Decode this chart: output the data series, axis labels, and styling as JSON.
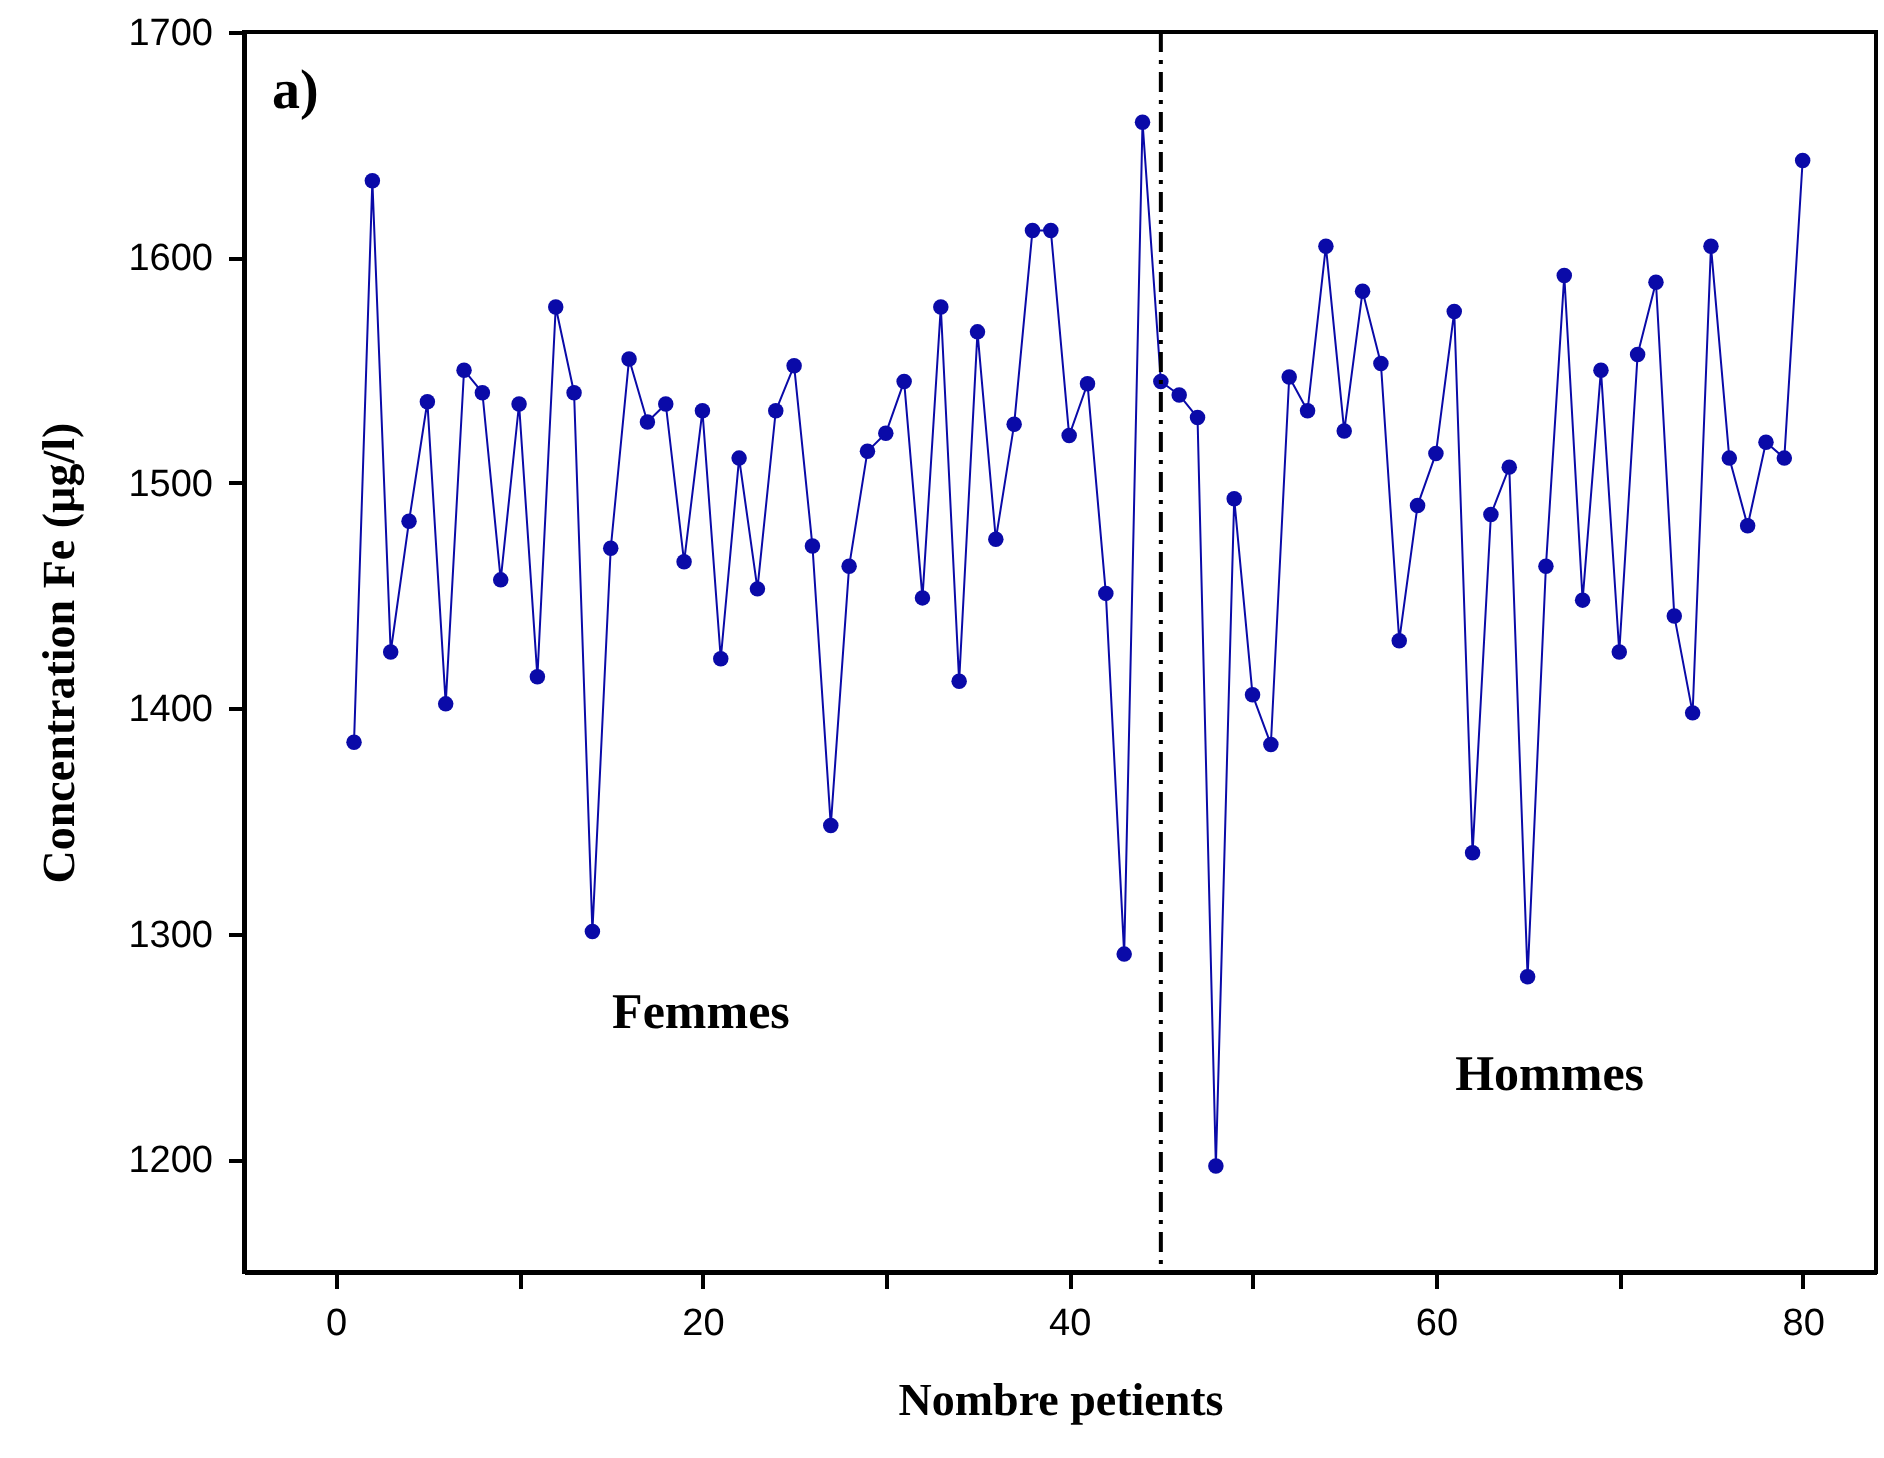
{
  "chart_data": {
    "type": "line",
    "xlabel": "Nombre petients",
    "ylabel": "Concentration Fe (µg/l)",
    "annotations": [
      "a)",
      "Femmes",
      "Hommes"
    ],
    "x": [
      1,
      2,
      3,
      4,
      5,
      6,
      7,
      8,
      9,
      10,
      11,
      12,
      13,
      14,
      15,
      16,
      17,
      18,
      19,
      20,
      21,
      22,
      23,
      24,
      25,
      26,
      27,
      28,
      29,
      30,
      31,
      32,
      33,
      34,
      35,
      36,
      37,
      38,
      39,
      40,
      41,
      42,
      43,
      44,
      45,
      46,
      47,
      48,
      49,
      50,
      51,
      52,
      53,
      54,
      55,
      56,
      57,
      58,
      59,
      60,
      61,
      62,
      63,
      64,
      65,
      66,
      67,
      68,
      69,
      70,
      71,
      72,
      73,
      74,
      75,
      76,
      77,
      78,
      79,
      80
    ],
    "series": [
      {
        "color": "#0a0aa8",
        "values": [
          1385,
          1634,
          1425,
          1483,
          1536,
          1402,
          1550,
          1540,
          1457,
          1535,
          1414,
          1578,
          1540,
          1301,
          1471,
          1555,
          1527,
          1535,
          1465,
          1532,
          1422,
          1511,
          1453,
          1532,
          1552,
          1472,
          1348,
          1463,
          1514,
          1522,
          1545,
          1449,
          1578,
          1412,
          1567,
          1475,
          1526,
          1612,
          1612,
          1521,
          1544,
          1451,
          1291,
          1660,
          1545,
          1539,
          1529,
          1197,
          1493,
          1406,
          1384,
          1547,
          1532,
          1605,
          1523,
          1585,
          1553,
          1430,
          1490,
          1513,
          1576,
          1336,
          1486,
          1507,
          1281,
          1463,
          1592,
          1448,
          1550,
          1425,
          1557,
          1589,
          1441,
          1398,
          1605,
          1511,
          1481,
          1518,
          1511,
          1643
        ]
      }
    ],
    "xlim": [
      -5,
      84
    ],
    "ylim": [
      1150,
      1700
    ],
    "xticks": [
      0,
      {
        "value": 10,
        "label": null
      },
      20,
      {
        "value": 30,
        "label": null
      },
      40,
      {
        "value": 50,
        "label": null
      },
      60,
      {
        "value": 70,
        "label": null
      },
      80
    ],
    "yticks": [
      1200,
      1300,
      1400,
      1500,
      1600,
      1700
    ],
    "ref_lines": [
      {
        "axis": "x",
        "value": 45,
        "color": "#000000",
        "line_style": "dashed"
      }
    ],
    "marker": "circle",
    "line_style": "solid",
    "grid": false
  }
}
